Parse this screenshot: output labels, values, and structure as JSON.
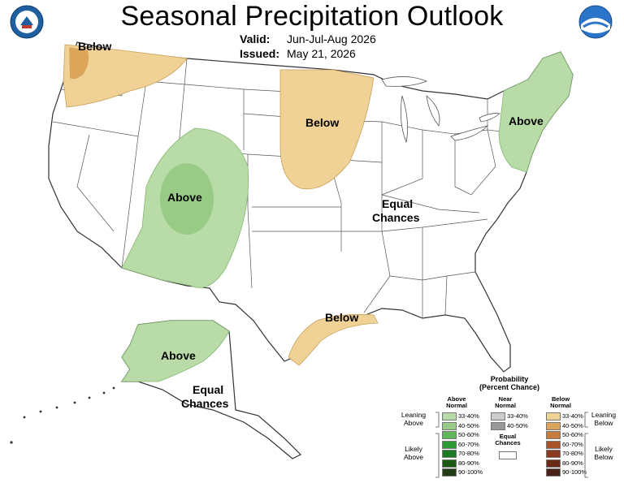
{
  "header": {
    "title": "Seasonal Precipitation Outlook",
    "valid_label": "Valid:",
    "valid_value": "Jun-Jul-Aug 2026",
    "issued_label": "Issued:",
    "issued_value": "May 21, 2026"
  },
  "logos": {
    "left": "doc-seal-icon",
    "right": "noaa-logo-icon"
  },
  "map": {
    "labels": {
      "northwest": "Below",
      "southwest": "Above",
      "plains": "Below",
      "northeast": "Above",
      "center_line1": "Equal",
      "center_line2": "Chances",
      "gulf": "Below",
      "alaska_north": "Above",
      "alaska_line1": "Equal",
      "alaska_line2": "Chances"
    }
  },
  "legend": {
    "title_line1": "Probability",
    "title_line2": "(Percent Chance)",
    "above_head_line1": "Above",
    "above_head_line2": "Normal",
    "near_head_line1": "Near",
    "near_head_line2": "Normal",
    "below_head_line1": "Below",
    "below_head_line2": "Normal",
    "leaning_above_1": "Leaning",
    "leaning_above_2": "Above",
    "likely_above_1": "Likely",
    "likely_above_2": "Above",
    "leaning_below_1": "Leaning",
    "leaning_below_2": "Below",
    "likely_below_1": "Likely",
    "likely_below_2": "Below",
    "equal_1": "Equal",
    "equal_2": "Chances",
    "above": [
      {
        "label": "33-40%",
        "color": "#b8dba8"
      },
      {
        "label": "40-50%",
        "color": "#97cb86"
      },
      {
        "label": "50-60%",
        "color": "#5fb75a"
      },
      {
        "label": "60-70%",
        "color": "#2e9a36"
      },
      {
        "label": "70-80%",
        "color": "#1b7a22"
      },
      {
        "label": "80-90%",
        "color": "#1a5a12"
      },
      {
        "label": "90-100%",
        "color": "#233d15"
      }
    ],
    "near": [
      {
        "label": "33-40%",
        "color": "#cccccc"
      },
      {
        "label": "40-50%",
        "color": "#999999"
      }
    ],
    "below": [
      {
        "label": "33-40%",
        "color": "#f0d296"
      },
      {
        "label": "40-50%",
        "color": "#dba65a"
      },
      {
        "label": "50-60%",
        "color": "#c77d3d"
      },
      {
        "label": "60-70%",
        "color": "#a9532b"
      },
      {
        "label": "70-80%",
        "color": "#8a3a1e"
      },
      {
        "label": "80-90%",
        "color": "#6b2a16"
      },
      {
        "label": "90-100%",
        "color": "#4a2118"
      }
    ]
  }
}
